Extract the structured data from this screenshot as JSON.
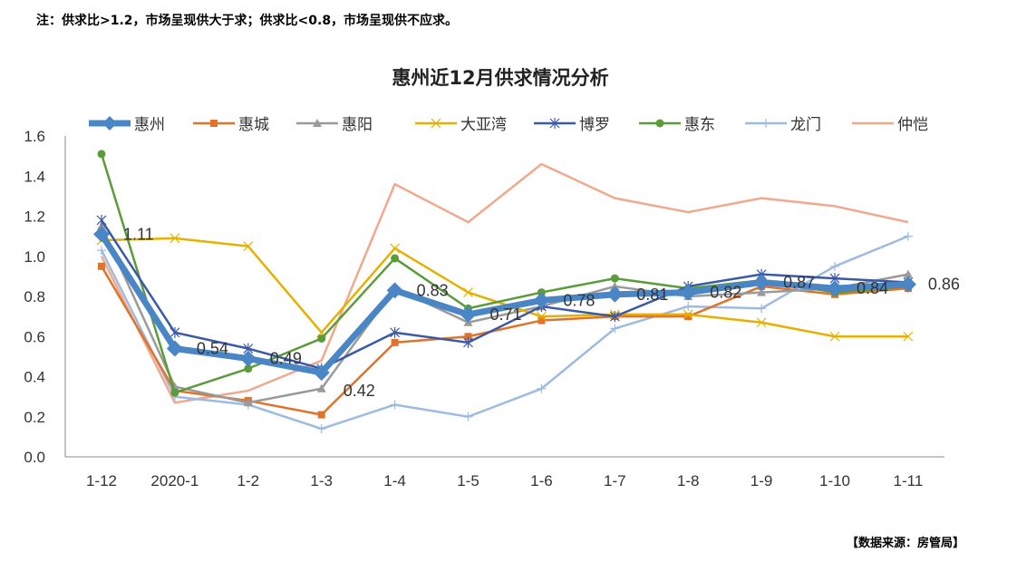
{
  "note": "注：供求比>1.2，市场呈现供大于求；供求比<0.8，市场呈现供不应求。",
  "source": "【数据来源：房管局】",
  "chart_data": {
    "type": "line",
    "title": "惠州近12月供求情况分析",
    "xlabel": "",
    "ylabel": "",
    "categories": [
      "1-12",
      "2020-1",
      "1-2",
      "1-3",
      "1-4",
      "1-5",
      "1-6",
      "1-7",
      "1-8",
      "1-9",
      "1-10",
      "1-11"
    ],
    "ylim": [
      0,
      1.6
    ],
    "yticks": [
      "0.0",
      "0.2",
      "0.4",
      "0.6",
      "0.8",
      "1.0",
      "1.2",
      "1.4",
      "1.6"
    ],
    "grid": false,
    "legend": "top",
    "series": [
      {
        "name": "惠州",
        "color": "#4a86c6",
        "marker": "diamond",
        "values": [
          1.11,
          0.54,
          0.49,
          0.42,
          0.83,
          0.71,
          0.78,
          0.81,
          0.82,
          0.87,
          0.84,
          0.86
        ],
        "labels": [
          "1.11",
          "0.54",
          "0.49",
          "0.42",
          "0.83",
          "0.71",
          "0.78",
          "0.81",
          "0.82",
          "0.87",
          "0.84",
          "0.86"
        ]
      },
      {
        "name": "惠城",
        "color": "#e0722a",
        "marker": "square",
        "values": [
          0.95,
          0.33,
          0.28,
          0.21,
          0.57,
          0.6,
          0.68,
          0.7,
          0.7,
          0.85,
          0.81,
          0.84
        ]
      },
      {
        "name": "惠阳",
        "color": "#9a9a9a",
        "marker": "triangle",
        "values": [
          1.15,
          0.35,
          0.27,
          0.34,
          0.84,
          0.67,
          0.75,
          0.85,
          0.8,
          0.82,
          0.84,
          0.91
        ]
      },
      {
        "name": "大亚湾",
        "color": "#e6b000",
        "marker": "x",
        "values": [
          1.08,
          1.09,
          1.05,
          0.62,
          1.04,
          0.82,
          0.7,
          0.71,
          0.71,
          0.67,
          0.6,
          0.6
        ]
      },
      {
        "name": "博罗",
        "color": "#3a5aa8",
        "marker": "star",
        "values": [
          1.18,
          0.62,
          0.54,
          0.44,
          0.62,
          0.57,
          0.75,
          0.7,
          0.85,
          0.91,
          0.89,
          0.87
        ]
      },
      {
        "name": "惠东",
        "color": "#5b9b3a",
        "marker": "circle",
        "values": [
          1.51,
          0.32,
          0.44,
          0.59,
          0.99,
          0.74,
          0.82,
          0.89,
          0.84,
          0.88,
          0.82,
          0.85
        ]
      },
      {
        "name": "龙门",
        "color": "#9dbbe0",
        "marker": "plus",
        "values": [
          1.03,
          0.3,
          0.26,
          0.14,
          0.26,
          0.2,
          0.34,
          0.64,
          0.75,
          0.74,
          0.95,
          1.1
        ]
      },
      {
        "name": "仲恺",
        "color": "#f0a98e",
        "marker": "none",
        "values": [
          1.0,
          0.27,
          0.33,
          0.48,
          1.36,
          1.17,
          1.46,
          1.29,
          1.22,
          1.29,
          1.25,
          1.17
        ]
      }
    ]
  }
}
